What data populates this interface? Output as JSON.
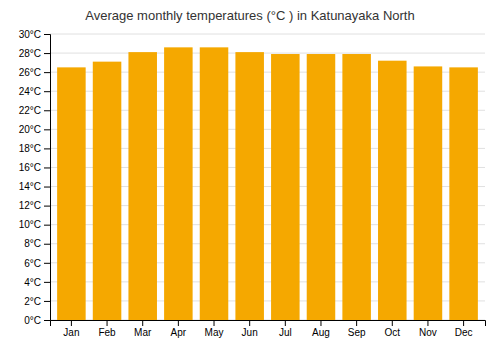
{
  "chart_data": {
    "type": "bar",
    "title": "Average monthly temperatures (°C ) in Katunayaka North",
    "categories": [
      "Jan",
      "Feb",
      "Mar",
      "Apr",
      "May",
      "Jun",
      "Jul",
      "Aug",
      "Sep",
      "Oct",
      "Nov",
      "Dec"
    ],
    "values": [
      26.5,
      27.1,
      28.1,
      28.6,
      28.6,
      28.1,
      27.9,
      27.9,
      27.9,
      27.2,
      26.6,
      26.5
    ],
    "color": "#F5A800",
    "ylim": [
      0,
      30
    ],
    "yticks": [
      {
        "value": 0,
        "label": "0°C"
      },
      {
        "value": 2,
        "label": "2°C"
      },
      {
        "value": 4,
        "label": "4°C"
      },
      {
        "value": 6,
        "label": "6°C"
      },
      {
        "value": 8,
        "label": "8°C"
      },
      {
        "value": 10,
        "label": "10°C"
      },
      {
        "value": 12,
        "label": "12°C"
      },
      {
        "value": 14,
        "label": "14°C"
      },
      {
        "value": 16,
        "label": "16°C"
      },
      {
        "value": 18,
        "label": "18°C"
      },
      {
        "value": 20,
        "label": "20°C"
      },
      {
        "value": 22,
        "label": "22°C"
      },
      {
        "value": 24,
        "label": "24°C"
      },
      {
        "value": 26,
        "label": "26°C"
      },
      {
        "value": 28,
        "label": "28°C"
      },
      {
        "value": 30,
        "label": "30°C"
      }
    ],
    "grid": true
  }
}
